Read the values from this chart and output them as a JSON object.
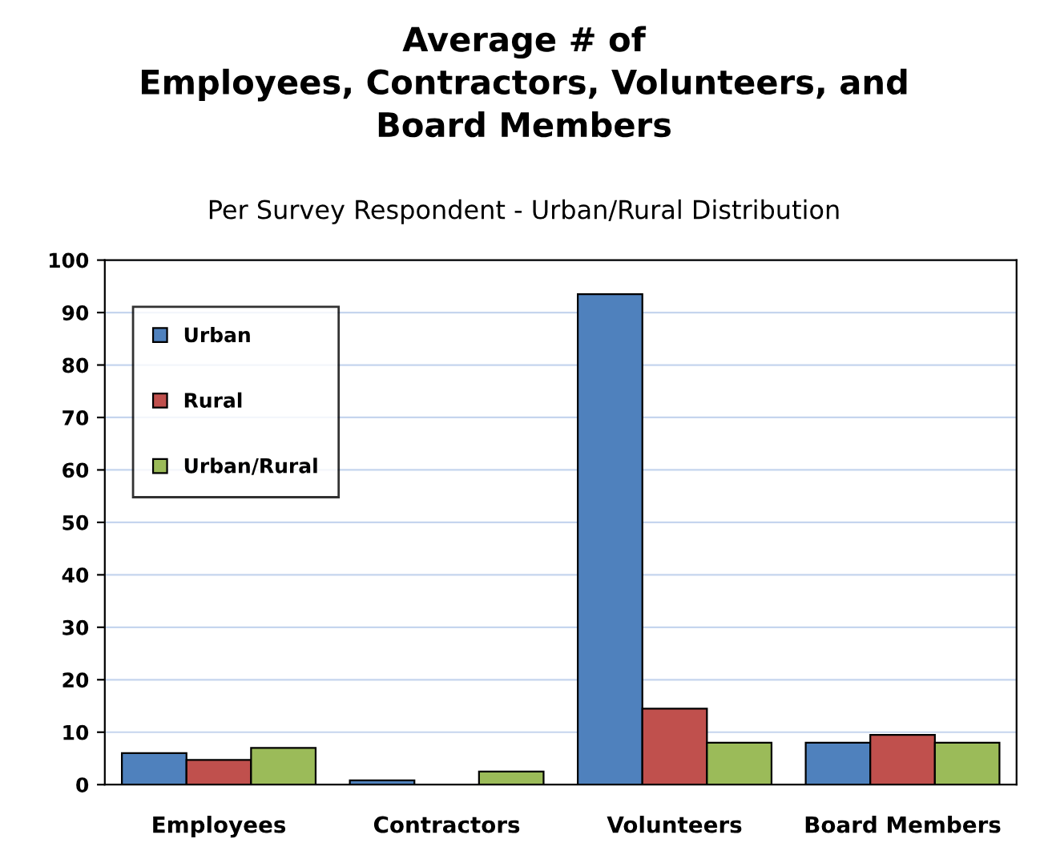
{
  "chart_data": {
    "type": "bar",
    "title": "Average # of\nEmployees, Contractors, Volunteers, and\nBoard Members",
    "subtitle": "Per Survey Respondent - Urban/Rural Distribution",
    "categories": [
      "Employees",
      "Contractors",
      "Volunteers",
      "Board Members"
    ],
    "series": [
      {
        "name": "Urban",
        "color": "#4f81bd",
        "values": [
          6,
          0.8,
          93.5,
          8
        ]
      },
      {
        "name": "Rural",
        "color": "#c0504d",
        "values": [
          4.7,
          null,
          14.5,
          9.5
        ]
      },
      {
        "name": "Urban/Rural",
        "color": "#9bbb59",
        "values": [
          7,
          2.5,
          8,
          8
        ]
      }
    ],
    "ylim": [
      0,
      100
    ],
    "yticks": [
      0,
      10,
      20,
      30,
      40,
      50,
      60,
      70,
      80,
      90,
      100
    ],
    "grid": "y",
    "legend": "top left"
  }
}
